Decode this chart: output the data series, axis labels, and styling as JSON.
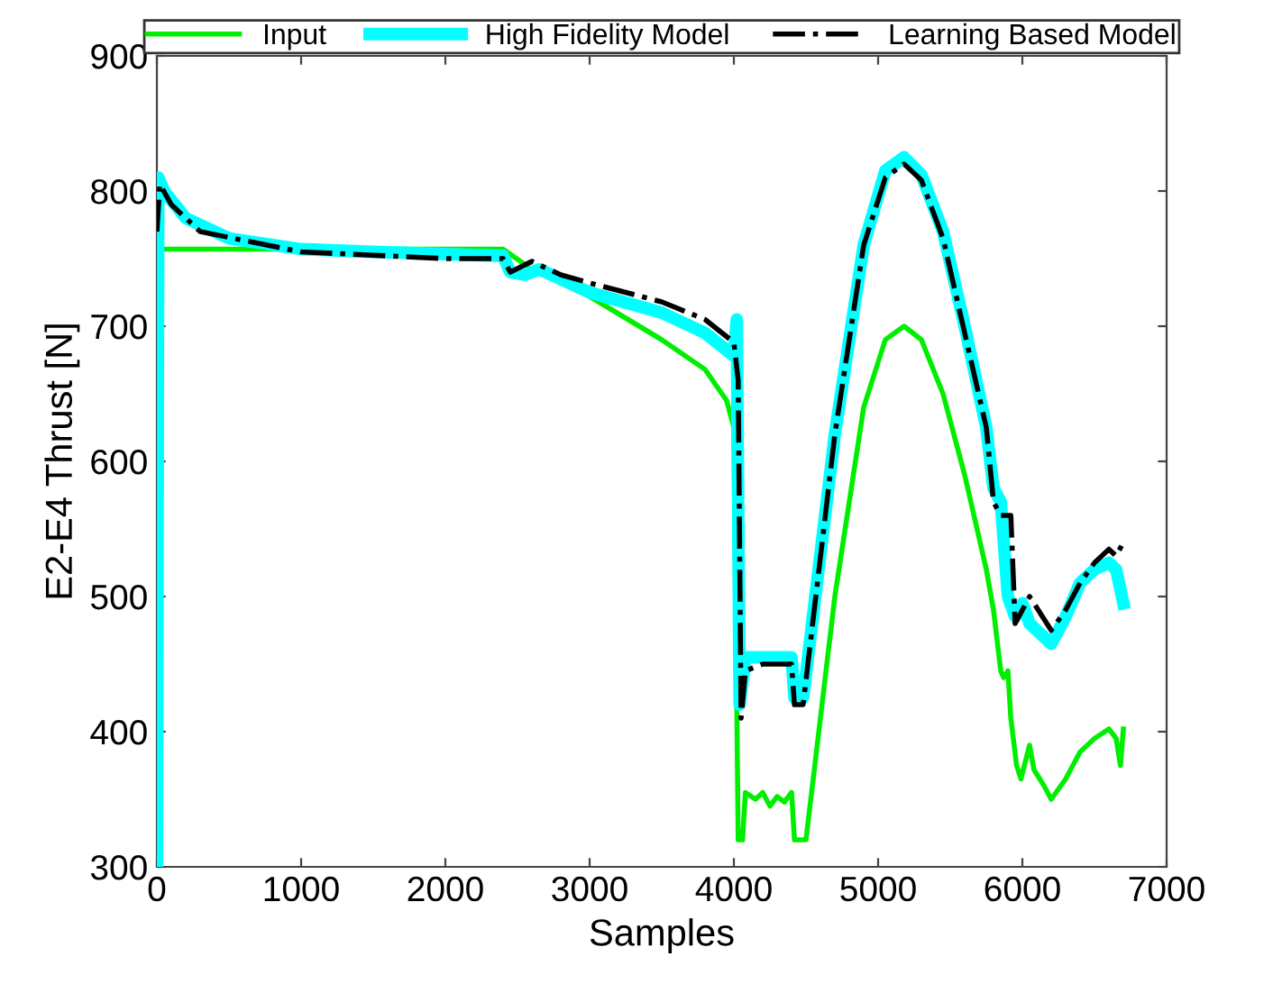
{
  "chart_data": {
    "type": "line",
    "xlabel": "Samples",
    "ylabel": "E2-E4 Thrust [N]",
    "xlim": [
      0,
      7000
    ],
    "ylim": [
      300,
      900
    ],
    "xticks": [
      0,
      1000,
      2000,
      3000,
      4000,
      5000,
      6000,
      7000
    ],
    "yticks": [
      300,
      400,
      500,
      600,
      700,
      800,
      900
    ],
    "grid": false,
    "legend": "top",
    "series": [
      {
        "name": "Input",
        "color": "#00ee00",
        "line_style": "solid",
        "x": [
          0,
          30,
          1000,
          2000,
          2400,
          2600,
          3000,
          3500,
          3800,
          3950,
          4000,
          4030,
          4060,
          4080,
          4150,
          4200,
          4250,
          4300,
          4350,
          4400,
          4420,
          4500,
          4700,
          4900,
          5050,
          5180,
          5300,
          5450,
          5600,
          5750,
          5800,
          5850,
          5870,
          5900,
          5920,
          5960,
          5990,
          6050,
          6080,
          6150,
          6200,
          6300,
          6400,
          6500,
          6600,
          6650,
          6680,
          6700
        ],
        "values": [
          757,
          757,
          757,
          757,
          757,
          742,
          722,
          690,
          668,
          645,
          625,
          320,
          320,
          355,
          350,
          355,
          345,
          352,
          348,
          355,
          320,
          320,
          500,
          640,
          690,
          700,
          690,
          650,
          590,
          520,
          490,
          445,
          440,
          445,
          410,
          375,
          365,
          390,
          372,
          360,
          350,
          365,
          385,
          395,
          402,
          395,
          375,
          402
        ]
      },
      {
        "name": "High Fidelity Model",
        "color": "#00ffff",
        "line_style": "solid",
        "x": [
          0,
          10,
          50,
          200,
          500,
          1000,
          1500,
          2400,
          2450,
          2550,
          2650,
          2800,
          3000,
          3500,
          3800,
          4000,
          4020,
          4040,
          4080,
          4200,
          4400,
          4420,
          4480,
          4700,
          4900,
          5050,
          5180,
          5300,
          5450,
          5600,
          5750,
          5800,
          5850,
          5900,
          5950,
          6000,
          6050,
          6200,
          6300,
          6400,
          6500,
          6600,
          6650,
          6700
        ],
        "values": [
          300,
          810,
          800,
          780,
          765,
          757,
          755,
          752,
          740,
          738,
          742,
          735,
          725,
          710,
          695,
          678,
          705,
          420,
          455,
          455,
          455,
          425,
          425,
          620,
          760,
          815,
          825,
          812,
          770,
          700,
          625,
          580,
          570,
          500,
          485,
          495,
          480,
          465,
          485,
          510,
          520,
          525,
          520,
          495
        ]
      },
      {
        "name": "Learning Based Model",
        "color": "#000000",
        "line_style": "dashdot",
        "x": [
          0,
          20,
          100,
          300,
          1000,
          2000,
          2400,
          2450,
          2600,
          2800,
          3000,
          3500,
          3800,
          4000,
          4030,
          4050,
          4080,
          4200,
          4400,
          4420,
          4480,
          4700,
          4900,
          5050,
          5180,
          5300,
          5450,
          5600,
          5750,
          5800,
          5850,
          5920,
          5950,
          6050,
          6200,
          6300,
          6400,
          6500,
          6600,
          6650,
          6700
        ],
        "values": [
          770,
          805,
          790,
          770,
          755,
          750,
          750,
          740,
          748,
          738,
          732,
          718,
          705,
          688,
          660,
          410,
          445,
          450,
          450,
          420,
          420,
          620,
          760,
          810,
          820,
          808,
          765,
          695,
          625,
          570,
          560,
          560,
          480,
          500,
          475,
          490,
          510,
          525,
          535,
          530,
          540
        ]
      }
    ]
  }
}
